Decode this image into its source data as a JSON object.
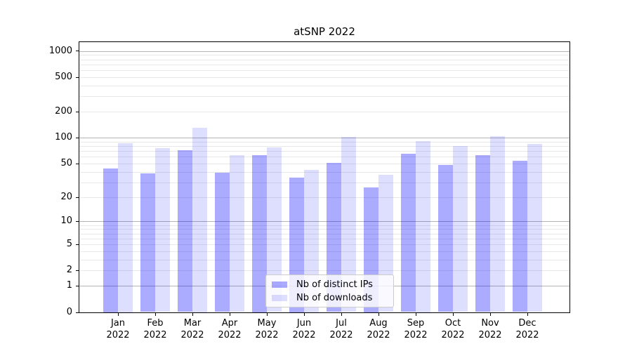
{
  "chart_data": {
    "type": "bar",
    "title": "atSNP 2022",
    "months": [
      "Jan",
      "Feb",
      "Mar",
      "Apr",
      "May",
      "Jun",
      "Jul",
      "Aug",
      "Sep",
      "Oct",
      "Nov",
      "Dec"
    ],
    "year": "2022",
    "categories": [
      "Jan 2022",
      "Feb 2022",
      "Mar 2022",
      "Apr 2022",
      "May 2022",
      "Jun 2022",
      "Jul 2022",
      "Aug 2022",
      "Sep 2022",
      "Oct 2022",
      "Nov 2022",
      "Dec 2022"
    ],
    "series": [
      {
        "name": "Nb of distinct IPs",
        "color": "rgba(0,0,255,0.33)",
        "color_hex": "#aaaaff",
        "values": [
          44,
          38,
          71,
          39,
          63,
          34,
          51,
          26,
          65,
          48,
          62,
          54
        ]
      },
      {
        "name": "Nb of downloads",
        "color": "rgba(0,0,255,0.13)",
        "color_hex": "#ddddff",
        "values": [
          86,
          75,
          130,
          62,
          77,
          42,
          102,
          37,
          91,
          80,
          103,
          84
        ]
      }
    ],
    "y_scale": "log1p",
    "y_ticks": [
      1000,
      500,
      200,
      100,
      50,
      20,
      10,
      5,
      2,
      1,
      0
    ],
    "ylim": [
      0,
      1260
    ],
    "xlabel": "",
    "ylabel": "",
    "grid": "both",
    "grid_major_color": "#b4b4b4",
    "grid_minor_color": "#e8e8e8",
    "legend_position": "inside-lower-center"
  }
}
